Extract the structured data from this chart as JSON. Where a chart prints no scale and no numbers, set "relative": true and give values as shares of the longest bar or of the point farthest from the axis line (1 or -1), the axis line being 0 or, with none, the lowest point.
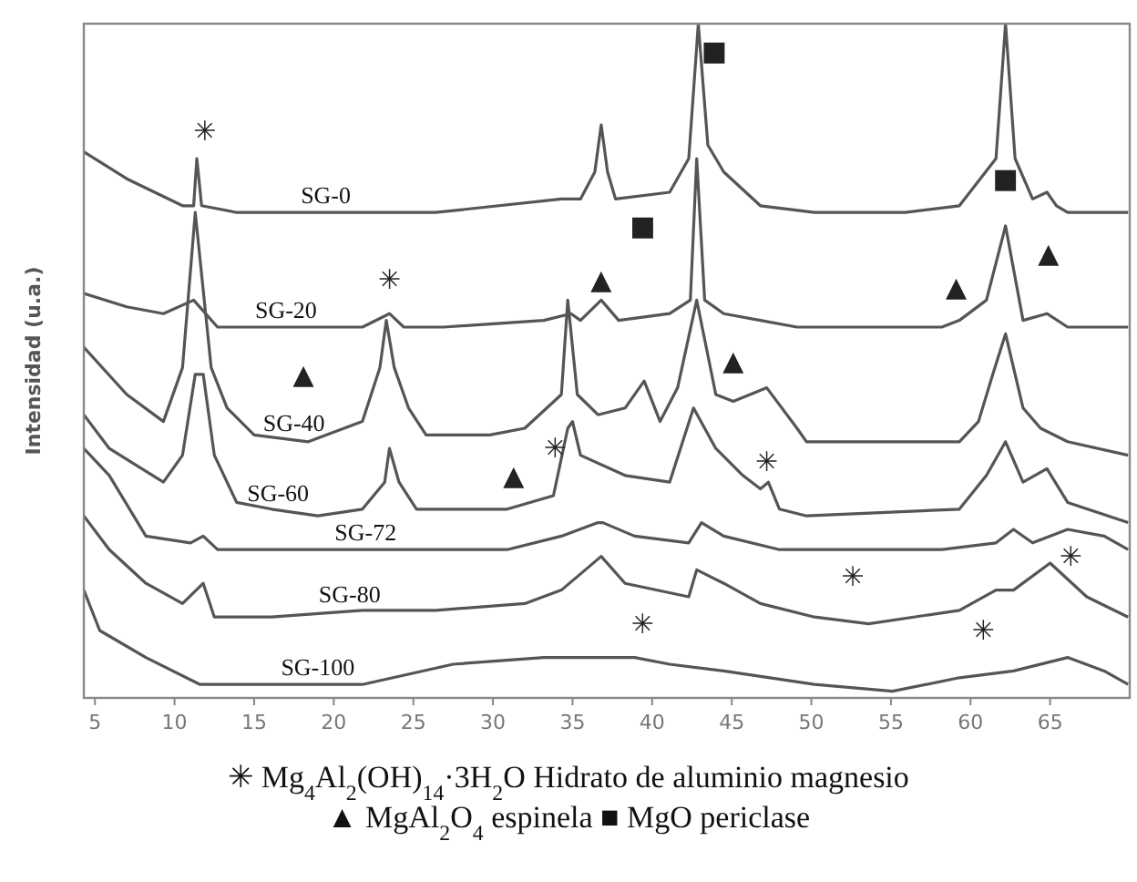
{
  "chart_data": {
    "type": "line",
    "ylabel": "Intensidad (u.a.)",
    "relative": true,
    "xlim": [
      4.3,
      70
    ],
    "xticks": [
      5,
      10,
      15,
      20,
      25,
      30,
      35,
      40,
      45,
      50,
      55,
      60,
      65
    ],
    "tick_labels": "x",
    "grid": false,
    "legend": false,
    "marker": "none",
    "line_style": "solid",
    "series": [
      {
        "name": "SG-0",
        "color": "#555555",
        "x": [
          4.3,
          7.0,
          10.5,
          11.2,
          11.4,
          11.7,
          13.9,
          21.8,
          26.4,
          34.3,
          35.5,
          36.4,
          36.8,
          37.2,
          37.7,
          41.1,
          42.3,
          42.9,
          43.5,
          44.5,
          46.8,
          50.2,
          55.9,
          59.3,
          61.6,
          62.2,
          62.8,
          63.9,
          64.8,
          65.4,
          66.1,
          69.9
        ],
        "values": [
          0.81,
          0.77,
          0.73,
          0.73,
          0.8,
          0.73,
          0.72,
          0.72,
          0.72,
          0.74,
          0.74,
          0.78,
          0.85,
          0.78,
          0.74,
          0.75,
          0.8,
          1,
          0.82,
          0.78,
          0.73,
          0.72,
          0.72,
          0.73,
          0.8,
          1,
          0.8,
          0.74,
          0.75,
          0.73,
          0.72,
          0.72
        ]
      },
      {
        "name": "SG-20",
        "color": "#555555",
        "x": [
          4.3,
          7.0,
          9.3,
          11.2,
          12.7,
          21.8,
          23.5,
          24.4,
          26.9,
          33.2,
          34.9,
          35.5,
          36.8,
          37.9,
          41.1,
          42.4,
          42.8,
          43.3,
          44.5,
          46.8,
          49.1,
          58.2,
          59.3,
          61.0,
          62.2,
          63.3,
          64.8,
          66.1,
          69.9
        ],
        "values": [
          0.6,
          0.58,
          0.57,
          0.59,
          0.55,
          0.55,
          0.57,
          0.55,
          0.55,
          0.56,
          0.57,
          0.56,
          0.59,
          0.56,
          0.57,
          0.59,
          0.8,
          0.59,
          0.57,
          0.56,
          0.55,
          0.55,
          0.56,
          0.59,
          0.7,
          0.56,
          0.57,
          0.55,
          0.55
        ]
      },
      {
        "name": "SG-40",
        "color": "#555555",
        "x": [
          4.3,
          7.0,
          9.3,
          10.5,
          11.3,
          12.3,
          13.3,
          15.0,
          18.4,
          21.8,
          22.9,
          23.3,
          23.8,
          24.7,
          25.8,
          29.8,
          32.0,
          34.3,
          34.7,
          35.3,
          36.6,
          38.3,
          39.5,
          40.5,
          41.6,
          42.8,
          44.0,
          45.1,
          47.2,
          49.1,
          49.7,
          59.3,
          60.5,
          61.4,
          62.2,
          63.3,
          64.4,
          66.1,
          69.9
        ],
        "values": [
          0.52,
          0.45,
          0.41,
          0.49,
          0.72,
          0.49,
          0.43,
          0.39,
          0.38,
          0.41,
          0.49,
          0.56,
          0.49,
          0.43,
          0.39,
          0.39,
          0.4,
          0.45,
          0.59,
          0.45,
          0.42,
          0.43,
          0.47,
          0.41,
          0.46,
          0.59,
          0.45,
          0.44,
          0.46,
          0.4,
          0.38,
          0.38,
          0.41,
          0.48,
          0.54,
          0.43,
          0.4,
          0.38,
          0.36
        ]
      },
      {
        "name": "SG-60",
        "color": "#555555",
        "x": [
          4.3,
          5.9,
          9.3,
          10.5,
          11.3,
          11.8,
          12.5,
          13.9,
          16.1,
          19.0,
          21.8,
          23.2,
          23.5,
          24.1,
          25.2,
          30.9,
          33.8,
          34.7,
          35.0,
          35.5,
          38.3,
          41.1,
          42.6,
          44.0,
          45.7,
          46.8,
          47.3,
          48.0,
          49.7,
          59.3,
          61.0,
          62.2,
          63.3,
          64.8,
          66.1,
          69.9
        ],
        "values": [
          0.42,
          0.37,
          0.32,
          0.36,
          0.48,
          0.48,
          0.36,
          0.29,
          0.28,
          0.27,
          0.28,
          0.32,
          0.37,
          0.32,
          0.28,
          0.28,
          0.3,
          0.4,
          0.41,
          0.36,
          0.33,
          0.32,
          0.43,
          0.37,
          0.33,
          0.31,
          0.32,
          0.28,
          0.27,
          0.28,
          0.33,
          0.38,
          0.32,
          0.34,
          0.29,
          0.26
        ]
      },
      {
        "name": "SG-72",
        "color": "#555555",
        "x": [
          4.3,
          5.9,
          8.2,
          11.0,
          11.8,
          12.7,
          21.8,
          30.9,
          34.3,
          36.6,
          36.9,
          38.9,
          42.3,
          43.1,
          44.5,
          48.0,
          58.2,
          61.6,
          62.7,
          63.9,
          66.1,
          68.4,
          69.9
        ],
        "values": [
          0.37,
          0.33,
          0.24,
          0.23,
          0.24,
          0.22,
          0.22,
          0.22,
          0.24,
          0.26,
          0.26,
          0.24,
          0.23,
          0.26,
          0.24,
          0.22,
          0.22,
          0.23,
          0.25,
          0.23,
          0.25,
          0.24,
          0.22
        ]
      },
      {
        "name": "SG-80",
        "color": "#555555",
        "x": [
          4.3,
          5.9,
          8.2,
          10.5,
          11.8,
          12.5,
          16.1,
          21.8,
          26.4,
          32.0,
          34.3,
          36.8,
          38.3,
          42.3,
          42.8,
          44.5,
          46.8,
          50.2,
          53.6,
          59.3,
          61.6,
          62.7,
          65.0,
          67.3,
          69.9
        ],
        "values": [
          0.27,
          0.22,
          0.17,
          0.14,
          0.17,
          0.12,
          0.12,
          0.13,
          0.13,
          0.14,
          0.16,
          0.21,
          0.17,
          0.15,
          0.19,
          0.17,
          0.14,
          0.12,
          0.11,
          0.13,
          0.16,
          0.16,
          0.2,
          0.15,
          0.12
        ]
      },
      {
        "name": "SG-100",
        "color": "#555555",
        "x": [
          4.3,
          5.3,
          8.2,
          11.6,
          16.1,
          21.8,
          27.5,
          33.2,
          36.6,
          38.9,
          41.1,
          44.5,
          50.2,
          55.1,
          59.3,
          62.7,
          66.1,
          68.4,
          69.9
        ],
        "values": [
          0.16,
          0.1,
          0.06,
          0.02,
          0.02,
          0.02,
          0.05,
          0.06,
          0.06,
          0.06,
          0.05,
          0.04,
          0.02,
          0.01,
          0.03,
          0.04,
          0.06,
          0.04,
          0.02
        ]
      }
    ],
    "annotations": [
      "✳",
      "✳",
      "✳",
      "✳",
      "✳",
      "✳",
      "✳",
      "✳",
      "▲",
      "▲",
      "▲",
      "▲",
      "▲",
      "▲",
      "■",
      "■",
      "■",
      "✳ Mg$_{4}$Al$_{2}$(OH)$_{14}$·3H$_{2}$O Hidrato de aluminio magnesio",
      "▲ MgAl$_{2}$O$_{4}$ espinela ■ MgO periclase"
    ]
  }
}
